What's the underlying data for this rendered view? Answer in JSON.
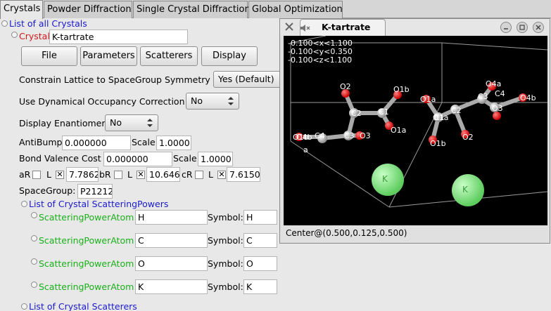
{
  "tabs": [
    {
      "label": "Crystals",
      "active": true
    },
    {
      "label": "Powder Diffraction",
      "active": false
    },
    {
      "label": "Single Crystal Diffraction",
      "active": false
    },
    {
      "label": "Global Optimization",
      "active": false
    }
  ],
  "tree": {
    "list_all_crystals": "List of all Crystals",
    "crystal_label": "Crystal",
    "crystal_name": "K-tartrate",
    "buttons": {
      "file": "File",
      "parameters": "Parameters",
      "scatterers": "Scatterers",
      "display": "Display"
    },
    "constrain_label": "Constrain Lattice to SpaceGroup Symmetry",
    "constrain_value": "Yes (Default)",
    "dyn_occ_label": "Use Dynamical Occupancy Correction",
    "dyn_occ_value": "No",
    "enantiomer_label": "Display Enantiomer",
    "enantiomer_value": "No",
    "antibump_label": "AntiBump",
    "antibump_value": "0.000000",
    "scale_label": "Scale",
    "antibump_scale": "1.0000",
    "bondval_label": "Bond Valence Cost",
    "bondval_value": "0.000000",
    "bondval_scale": "1.0000",
    "lattice": {
      "a_label": "aR",
      "a_l": "L",
      "a_value": "7.7862",
      "b_label": "bR",
      "b_l": "L",
      "b_value": "10.646",
      "c_label": "cR",
      "c_l": "L",
      "c_value": "7.6150"
    },
    "spacegroup_label": "SpaceGroup:",
    "spacegroup_value": "P21212",
    "scattering_powers_title": "List of Crystal ScatteringPowers",
    "symbol_label": "Symbol:",
    "scattering_powers": [
      {
        "type": "ScatteringPowerAtom",
        "name": "H",
        "symbol": "H"
      },
      {
        "type": "ScatteringPowerAtom",
        "name": "C",
        "symbol": "C"
      },
      {
        "type": "ScatteringPowerAtom",
        "name": "O",
        "symbol": "O"
      },
      {
        "type": "ScatteringPowerAtom",
        "name": "K",
        "symbol": "K"
      }
    ],
    "scatterers_title": "List of Crystal Scatterers"
  },
  "viewer": {
    "title": "K-tartrate",
    "limits": [
      "-0.100<x<1.100",
      "-0.100<y<0.350",
      "-0.100<z<1.100"
    ],
    "axis_label": "a",
    "status": "Center@(0.500,0.125,0.500)",
    "atom_labels": [
      "O2",
      "O1b",
      "O1a",
      "C2",
      "C1",
      "O1a",
      "C3",
      "O3",
      "O4b",
      "C4",
      "O1b",
      "O2",
      "O1a",
      "C1",
      "C2",
      "C3",
      "C4",
      "O4a",
      "O3",
      "O4b",
      "O1b",
      "K",
      "K"
    ]
  },
  "colors": {
    "link_blue": "#1a1acc",
    "crystal_red": "#d01818",
    "scattering_green": "#19b019",
    "oxygen_red": "#e01010",
    "carbon_grey": "#c0c0c0",
    "potassium_green": "#8ee88e"
  }
}
